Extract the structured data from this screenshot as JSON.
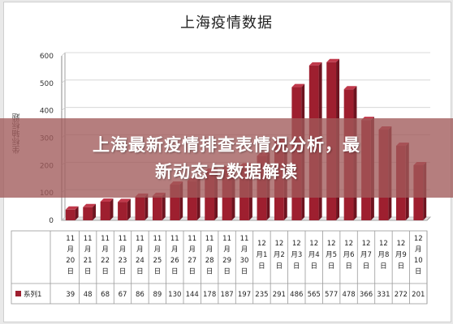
{
  "headline": {
    "line1": "上海最新疫情排查表情况分析，最",
    "line2": "新动态与数据解读"
  },
  "colors": {
    "bar": "#9e1f2f",
    "bar_top": "#c0394b",
    "axis": "#888888",
    "grid": "#d0d0d0"
  },
  "chart_data": {
    "type": "bar",
    "title": "上海疫情数据",
    "xlabel": "",
    "ylabel": "坐标轴标题",
    "ylim": [
      0,
      600
    ],
    "yticks": [
      "0",
      "100",
      "200",
      "300",
      "400",
      "500",
      "600"
    ],
    "grid": true,
    "categories": [
      [
        "11",
        "月",
        "20",
        "日"
      ],
      [
        "11",
        "月",
        "21",
        "日"
      ],
      [
        "11",
        "月",
        "22",
        "日"
      ],
      [
        "11",
        "月",
        "23",
        "日"
      ],
      [
        "11",
        "月",
        "24",
        "日"
      ],
      [
        "11",
        "月",
        "25",
        "日"
      ],
      [
        "11",
        "月",
        "26",
        "日"
      ],
      [
        "11",
        "月",
        "27",
        "日"
      ],
      [
        "11",
        "月",
        "28",
        "日"
      ],
      [
        "11",
        "月",
        "29",
        "日"
      ],
      [
        "11",
        "月",
        "30",
        "日"
      ],
      [
        "12",
        "月1",
        "日"
      ],
      [
        "12",
        "月2",
        "日"
      ],
      [
        "12",
        "月3",
        "日"
      ],
      [
        "12",
        "月4",
        "日"
      ],
      [
        "12",
        "月5",
        "日"
      ],
      [
        "12",
        "月6",
        "日"
      ],
      [
        "12",
        "月7",
        "日"
      ],
      [
        "12",
        "月8",
        "日"
      ],
      [
        "12",
        "月9",
        "日"
      ],
      [
        "12",
        "月",
        "10",
        "日"
      ]
    ],
    "series": [
      {
        "name": "系列1",
        "values": [
          39,
          48,
          68,
          67,
          86,
          89,
          130,
          144,
          178,
          187,
          197,
          235,
          291,
          486,
          565,
          577,
          478,
          366,
          331,
          272,
          201
        ]
      }
    ]
  }
}
